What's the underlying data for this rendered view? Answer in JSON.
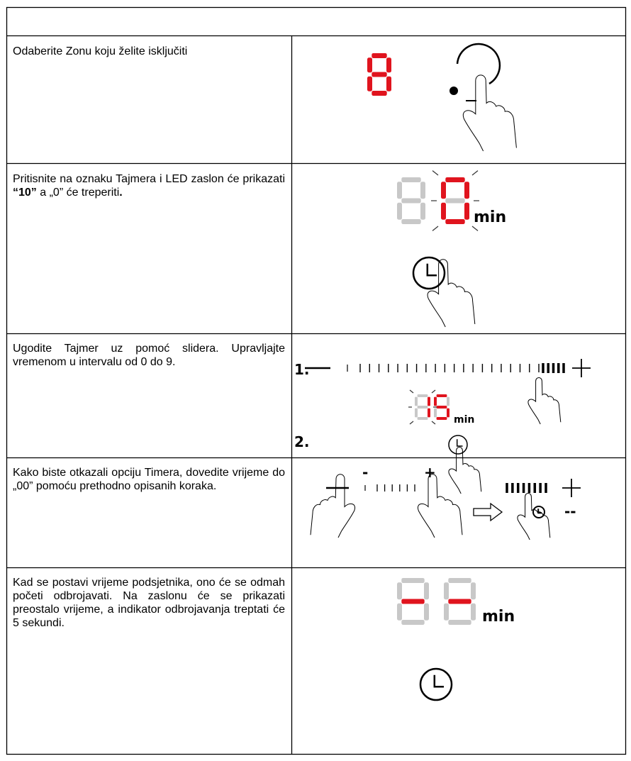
{
  "rows": [
    {
      "text": [
        "Odaberite Zonu koju želite isključiti"
      ]
    },
    {
      "text": [
        "Pritisnite na oznaku Tajmera i LED zaslon će prikazati ",
        "“10”",
        " a „0” će treperiti",
        "."
      ],
      "figure": {
        "unit": "min"
      }
    },
    {
      "text": [
        "Ugodite Tajmer uz pomoć slidera. Upravljajte vremenom u intervalu od 0 do 9."
      ],
      "figure": {
        "step1": "1.",
        "step2": "2.",
        "unit": "min"
      }
    },
    {
      "text": [
        "Kako biste otkazali opciju Timera, dovedite vrijeme do „00” pomoću prethodno opisanih koraka."
      ],
      "figure": {
        "minus": "-",
        "plus": "+",
        "display": "--"
      }
    },
    {
      "text": [
        "Kad se postavi vrijeme podsjetnika, ono će se odmah početi odbrojavati. Na zaslonu će se prikazati preostalo vrijeme, a indikator odbrojavanja treptati će 5 sekundi."
      ],
      "figure": {
        "unit": "min"
      }
    }
  ]
}
